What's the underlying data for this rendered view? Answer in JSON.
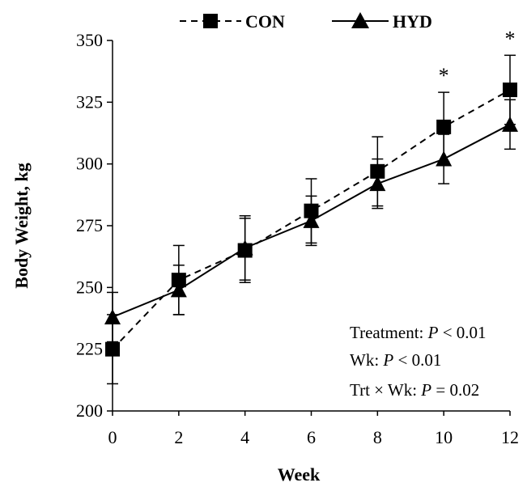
{
  "chart_data": {
    "type": "line",
    "xlabel": "Week",
    "ylabel": "Body Weight, kg",
    "x": [
      0,
      2,
      4,
      6,
      8,
      10,
      12
    ],
    "xlim": [
      0,
      12
    ],
    "ylim": [
      200,
      350
    ],
    "yticks": [
      200,
      225,
      250,
      275,
      300,
      325,
      350
    ],
    "xticks": [
      0,
      2,
      4,
      6,
      8,
      10,
      12
    ],
    "grid": false,
    "legend_position": "top",
    "series": [
      {
        "name": "CON",
        "marker": "square",
        "line_style": "dashed",
        "color": "#000000",
        "values": [
          225,
          253,
          265,
          281,
          297,
          315,
          330
        ],
        "error": [
          14,
          14,
          13,
          13,
          14,
          14,
          14
        ]
      },
      {
        "name": "HYD",
        "marker": "triangle",
        "line_style": "solid",
        "color": "#000000",
        "values": [
          238,
          249,
          266,
          277,
          292,
          302,
          316
        ],
        "error": [
          10,
          10,
          13,
          10,
          10,
          10,
          10
        ]
      }
    ],
    "significance_marks": [
      {
        "x": 10,
        "label": "*"
      },
      {
        "x": 12,
        "label": "*"
      }
    ],
    "annotations": {
      "treatment_prefix": "Treatment: ",
      "treatment_p": "P",
      "treatment_rest": " < 0.01",
      "wk_prefix": "Wk: ",
      "wk_p": "P",
      "wk_rest": " < 0.01",
      "trt_wk_prefix": "Trt × Wk: ",
      "trt_wk_p": "P",
      "trt_wk_rest": " = 0.02"
    }
  }
}
